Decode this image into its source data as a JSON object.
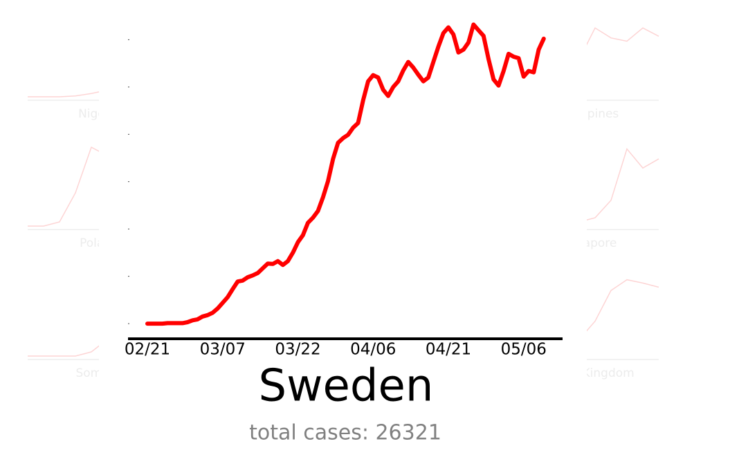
{
  "chart_data": {
    "type": "line",
    "title": "Sweden",
    "subtitle": "total cases: 26321",
    "categories": [
      "02/21",
      null,
      null,
      null,
      null,
      null,
      null,
      null,
      null,
      null,
      null,
      null,
      null,
      null,
      null,
      "03/07",
      null,
      null,
      null,
      null,
      null,
      null,
      null,
      null,
      null,
      null,
      null,
      null,
      null,
      null,
      "03/22",
      null,
      null,
      null,
      null,
      null,
      null,
      null,
      null,
      null,
      null,
      null,
      null,
      null,
      null,
      "04/06",
      null,
      null,
      null,
      null,
      null,
      null,
      null,
      null,
      null,
      null,
      null,
      null,
      null,
      null,
      "04/21",
      null,
      null,
      null,
      null,
      null,
      null,
      null,
      null,
      null,
      null,
      null,
      null,
      null,
      null,
      "05/06",
      null,
      null,
      null,
      null
    ],
    "series": [
      {
        "name": "Sweden",
        "color": "#ff0000",
        "values": [
          0,
          0,
          0,
          0,
          0.01,
          0.01,
          0.01,
          0.01,
          0.03,
          0.07,
          0.09,
          0.15,
          0.18,
          0.23,
          0.32,
          0.44,
          0.56,
          0.73,
          0.89,
          0.91,
          0.98,
          1.02,
          1.07,
          1.17,
          1.27,
          1.26,
          1.32,
          1.24,
          1.32,
          1.5,
          1.72,
          1.87,
          2.13,
          2.24,
          2.38,
          2.67,
          3.01,
          3.48,
          3.82,
          3.92,
          3.99,
          4.14,
          4.24,
          4.72,
          5.12,
          5.25,
          5.2,
          4.94,
          4.81,
          5.0,
          5.12,
          5.35,
          5.53,
          5.41,
          5.26,
          5.12,
          5.2,
          5.53,
          5.85,
          6.14,
          6.26,
          6.11,
          5.73,
          5.79,
          5.94,
          6.32,
          6.2,
          6.08,
          5.59,
          5.16,
          5.03,
          5.34,
          5.7,
          5.64,
          5.61,
          5.22,
          5.34,
          5.31,
          5.79,
          6.02
        ]
      }
    ],
    "ylim": [
      -0.32,
      6.4
    ],
    "yticks": [
      0,
      1,
      2,
      3,
      4,
      5,
      6
    ]
  },
  "background_charts": [
    {
      "title": "Nigeria",
      "color": "#fdd4d4",
      "values": [
        0,
        0,
        0,
        0.01,
        0.04,
        0.08,
        0.15,
        0.3,
        0.5,
        0.7
      ],
      "ylim": [
        0,
        1
      ]
    },
    {
      "title": "Philippines",
      "color": "#fdd4d4",
      "values": [
        0,
        0.02,
        0.08,
        0.2,
        0.45,
        0.83,
        0.71,
        0.67,
        0.83,
        0.73
      ],
      "ylim": [
        0,
        1
      ]
    },
    {
      "title": "Poland",
      "color": "#fdd4d4",
      "values": [
        0,
        0,
        0.05,
        0.4,
        0.95,
        0.85,
        0.8,
        0.75,
        0.7,
        0.65
      ],
      "ylim": [
        0,
        1
      ]
    },
    {
      "title": "Singapore",
      "color": "#fdd4d4",
      "values": [
        0,
        0,
        0,
        0.02,
        0.05,
        0.1,
        0.31,
        0.93,
        0.7,
        0.81
      ],
      "ylim": [
        0,
        1
      ]
    },
    {
      "title": "Somalia",
      "color": "#fdd4d4",
      "values": [
        0,
        0,
        0,
        0,
        0.05,
        0.2,
        0.35,
        0.5,
        0.6,
        0.7
      ],
      "ylim": [
        0,
        1
      ]
    },
    {
      "title": "United Kingdom",
      "color": "#fdd4d4",
      "values": [
        0,
        0.01,
        0.03,
        0.05,
        0.2,
        0.42,
        0.79,
        0.92,
        0.88,
        0.83
      ],
      "ylim": [
        0,
        1
      ]
    }
  ]
}
